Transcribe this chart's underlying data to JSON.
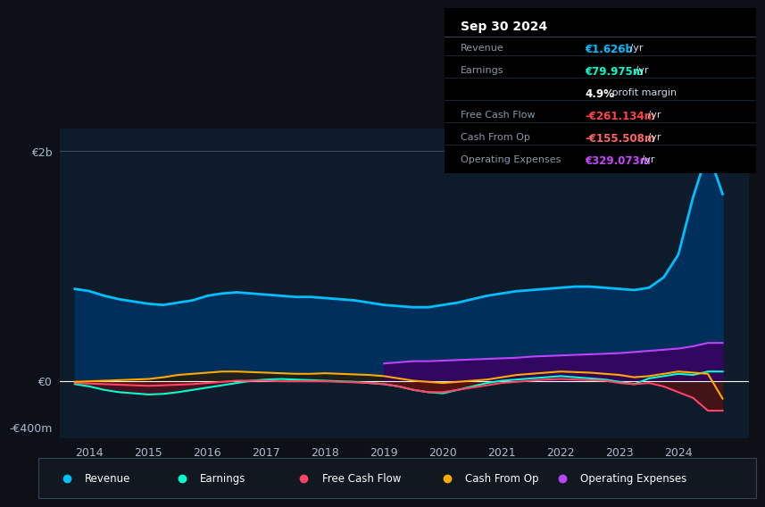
{
  "bg_color": "#0d1117",
  "plot_bg_color": "#0d1b2a",
  "info_title": "Sep 30 2024",
  "years": [
    2013.75,
    2014.0,
    2014.25,
    2014.5,
    2014.75,
    2015.0,
    2015.25,
    2015.5,
    2015.75,
    2016.0,
    2016.25,
    2016.5,
    2016.75,
    2017.0,
    2017.25,
    2017.5,
    2017.75,
    2018.0,
    2018.25,
    2018.5,
    2018.75,
    2019.0,
    2019.25,
    2019.5,
    2019.75,
    2020.0,
    2020.25,
    2020.5,
    2020.75,
    2021.0,
    2021.25,
    2021.5,
    2021.75,
    2022.0,
    2022.25,
    2022.5,
    2022.75,
    2023.0,
    2023.25,
    2023.5,
    2023.75,
    2024.0,
    2024.25,
    2024.5,
    2024.75
  ],
  "revenue": [
    800,
    780,
    740,
    710,
    690,
    670,
    660,
    680,
    700,
    740,
    760,
    770,
    760,
    750,
    740,
    730,
    730,
    720,
    710,
    700,
    680,
    660,
    650,
    640,
    640,
    660,
    680,
    710,
    740,
    760,
    780,
    790,
    800,
    810,
    820,
    820,
    810,
    800,
    790,
    810,
    900,
    1100,
    1600,
    2000,
    1626
  ],
  "earnings": [
    -30,
    -50,
    -80,
    -100,
    -110,
    -120,
    -115,
    -100,
    -80,
    -60,
    -40,
    -20,
    0,
    10,
    15,
    10,
    5,
    0,
    -5,
    -10,
    -20,
    -30,
    -50,
    -80,
    -100,
    -110,
    -80,
    -50,
    -20,
    0,
    10,
    20,
    30,
    40,
    30,
    20,
    10,
    -10,
    -30,
    20,
    40,
    60,
    50,
    80,
    80
  ],
  "free_cash_flow": [
    -20,
    -25,
    -30,
    -35,
    -40,
    -45,
    -40,
    -35,
    -30,
    -20,
    -10,
    0,
    0,
    0,
    -5,
    -5,
    -5,
    -5,
    -10,
    -15,
    -20,
    -30,
    -50,
    -80,
    -100,
    -100,
    -80,
    -60,
    -40,
    -20,
    -10,
    0,
    10,
    15,
    10,
    5,
    0,
    -20,
    -30,
    -20,
    -50,
    -100,
    -150,
    -261,
    -261
  ],
  "cash_from_op": [
    -10,
    -5,
    0,
    5,
    10,
    15,
    30,
    50,
    60,
    70,
    80,
    80,
    75,
    70,
    65,
    60,
    60,
    65,
    60,
    55,
    50,
    40,
    20,
    0,
    -10,
    -20,
    -10,
    0,
    10,
    30,
    50,
    60,
    70,
    80,
    75,
    70,
    60,
    50,
    30,
    40,
    60,
    80,
    70,
    60,
    -156
  ],
  "operating_expenses": [
    0,
    0,
    0,
    0,
    0,
    0,
    0,
    0,
    0,
    0,
    0,
    0,
    0,
    0,
    0,
    0,
    0,
    0,
    0,
    0,
    0,
    150,
    160,
    170,
    170,
    175,
    180,
    185,
    190,
    195,
    200,
    210,
    215,
    220,
    225,
    230,
    235,
    240,
    250,
    260,
    270,
    280,
    300,
    329,
    329
  ],
  "revenue_color": "#00bfff",
  "earnings_color": "#00ffcc",
  "free_cash_flow_color": "#ff4466",
  "cash_from_op_color": "#ffaa00",
  "operating_expenses_color": "#bb44ff",
  "revenue_fill_color": "#003366",
  "ylim": [
    -500,
    2200
  ],
  "xlim": [
    2013.5,
    2025.2
  ],
  "yticks_labels": [
    "€2b",
    "€0",
    "-€400m"
  ],
  "yticks_values": [
    2000,
    0,
    -400
  ],
  "xtick_years": [
    2014,
    2015,
    2016,
    2017,
    2018,
    2019,
    2020,
    2021,
    2022,
    2023,
    2024
  ],
  "legend_items": [
    {
      "label": "Revenue",
      "color": "#00bfff"
    },
    {
      "label": "Earnings",
      "color": "#00ffcc"
    },
    {
      "label": "Free Cash Flow",
      "color": "#ff4466"
    },
    {
      "label": "Cash From Op",
      "color": "#ffaa00"
    },
    {
      "label": "Operating Expenses",
      "color": "#bb44ff"
    }
  ],
  "info_rows": [
    {
      "label": "Revenue",
      "value": "€1.626b",
      "suffix": " /yr",
      "value_color": "#00bfff"
    },
    {
      "label": "Earnings",
      "value": "€79.975m",
      "suffix": " /yr",
      "value_color": "#00ffcc"
    },
    {
      "label": "",
      "value": "4.9%",
      "suffix": " profit margin",
      "value_color": "#ffffff"
    },
    {
      "label": "Free Cash Flow",
      "value": "-€261.134m",
      "suffix": " /yr",
      "value_color": "#ff4444"
    },
    {
      "label": "Cash From Op",
      "value": "-€155.508m",
      "suffix": " /yr",
      "value_color": "#ff6666"
    },
    {
      "label": "Operating Expenses",
      "value": "€329.073m",
      "suffix": " /yr",
      "value_color": "#cc44ff"
    }
  ]
}
